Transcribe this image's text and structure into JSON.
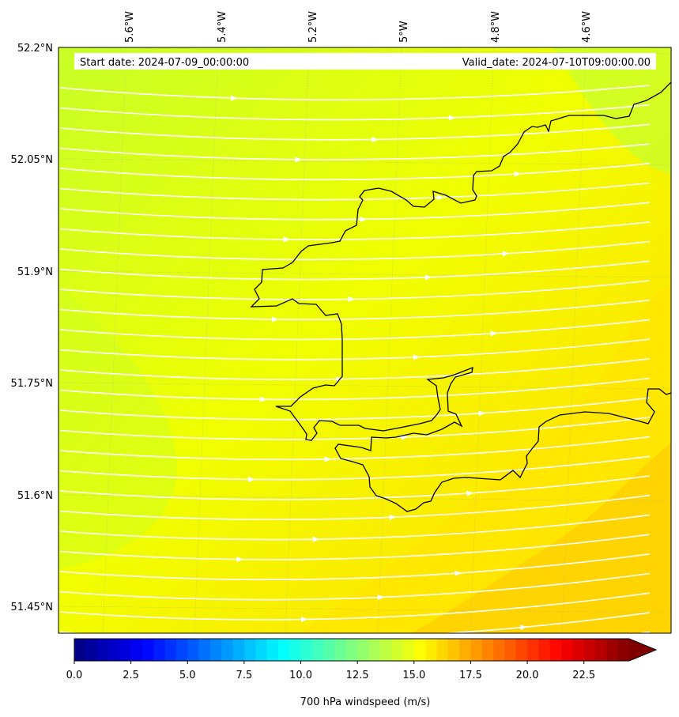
{
  "map": {
    "start_label": "Start date: 2024-07-09_00:00:00",
    "valid_label": "Valid_date: 2024-07-10T09:00:00.00",
    "lon_labels": [
      "5.6°W",
      "5.4°W",
      "5.2°W",
      "5°W",
      "4.8°W",
      "4.6°W"
    ],
    "lat_labels": [
      "52.2°N",
      "52.05°N",
      "51.9°N",
      "51.75°N",
      "51.6°N",
      "51.45°N"
    ],
    "coastline_color": "#000000",
    "streamline_color": "#ffffff",
    "field_colors": {
      "low": "#c8ff28",
      "mid": "#f0ff00",
      "high": "#ffe600",
      "max": "#ffcc00"
    }
  },
  "colorbar": {
    "label": "700 hPa windspeed (m/s)",
    "min": 0,
    "max": 24.5,
    "extend": "max",
    "ticks": [
      {
        "value": 0,
        "label": "0.0"
      },
      {
        "value": 2.5,
        "label": "2.5"
      },
      {
        "value": 5,
        "label": "5.0"
      },
      {
        "value": 7.5,
        "label": "7.5"
      },
      {
        "value": 10,
        "label": "10.0"
      },
      {
        "value": 12.5,
        "label": "12.5"
      },
      {
        "value": 15,
        "label": "15.0"
      },
      {
        "value": 17.5,
        "label": "17.5"
      },
      {
        "value": 20,
        "label": "20.0"
      },
      {
        "value": 22.5,
        "label": "22.5"
      }
    ]
  }
}
